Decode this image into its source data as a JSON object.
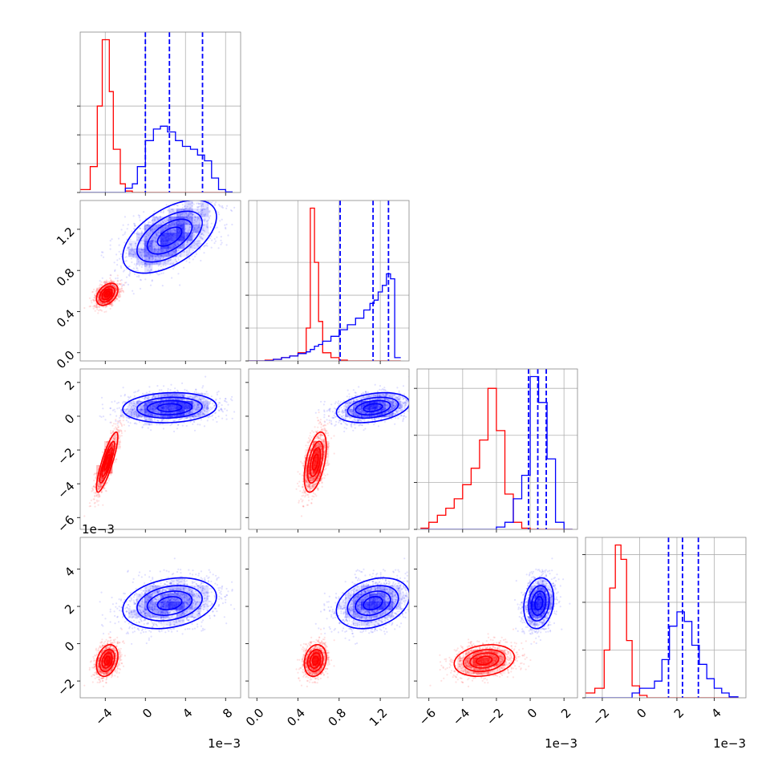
{
  "chart_data": {
    "type": "corner",
    "title": "",
    "params": [
      {
        "ticks": [
          -4,
          0,
          4,
          8
        ],
        "tick_labels": [
          "−4",
          "0",
          "4",
          "8"
        ],
        "range": [
          -6.5,
          9.5
        ],
        "scale_label": "1e−3"
      },
      {
        "ticks": [
          0.0,
          0.4,
          0.8,
          1.2
        ],
        "tick_labels": [
          "0.0",
          "0.4",
          "0.8",
          "1.2"
        ],
        "range": [
          -0.08,
          1.48
        ],
        "scale_label": ""
      },
      {
        "ticks": [
          -6,
          -4,
          -2,
          0,
          2
        ],
        "tick_labels": [
          "−6",
          "−4",
          "−2",
          "0",
          "2"
        ],
        "range": [
          -6.7,
          2.8
        ],
        "scale_label": "1e−3"
      },
      {
        "ticks": [
          -2,
          0,
          2,
          4
        ],
        "tick_labels": [
          "−2",
          "0",
          "2",
          "4"
        ],
        "range": [
          -2.9,
          5.7
        ],
        "scale_label": "1e−3"
      }
    ],
    "series": [
      {
        "color": "#ff0000",
        "means": [
          -3.8,
          0.57,
          -2.7,
          -0.9
        ],
        "sd": [
          0.55,
          0.055,
          0.9,
          0.45
        ],
        "corr": [
          [
            1,
            0.4,
            0.85,
            0.3
          ],
          [
            0.4,
            1,
            0.5,
            0.2
          ],
          [
            0.85,
            0.5,
            1,
            0.2
          ],
          [
            0.3,
            0.2,
            0.2,
            1
          ]
        ]
      },
      {
        "color": "#0000ff",
        "means": [
          2.5,
          1.13,
          0.5,
          2.2
        ],
        "sd": [
          2.4,
          0.18,
          0.45,
          0.7
        ],
        "corr": [
          [
            1,
            0.55,
            0.1,
            0.3
          ],
          [
            0.55,
            1,
            0.3,
            0.35
          ],
          [
            0.1,
            0.3,
            1,
            0.2
          ],
          [
            0.3,
            0.35,
            0.2,
            1
          ]
        ]
      }
    ],
    "diagonal": [
      {
        "bins": [
          -6.5,
          -5.5,
          -4.8,
          -4.3,
          -3.6,
          -3.2,
          -2.5,
          -2.0,
          -1.3,
          -0.8,
          0.0,
          0.8,
          1.5,
          2.2,
          3.0,
          3.7,
          4.5,
          5.2,
          5.9,
          6.6,
          7.3,
          8.0,
          8.7
        ],
        "red": [
          0.1,
          0.9,
          3.0,
          5.3,
          3.5,
          1.5,
          0.3,
          0.05,
          0,
          0,
          0,
          0,
          0,
          0,
          0,
          0,
          0,
          0,
          0,
          0,
          0,
          0
        ],
        "blue": [
          0,
          0,
          0,
          0,
          0,
          0,
          0,
          0.15,
          0.3,
          0.9,
          1.8,
          2.2,
          2.3,
          2.1,
          1.8,
          1.6,
          1.5,
          1.3,
          1.1,
          0.5,
          0.1,
          0.02
        ],
        "quantiles": [
          0.0,
          2.4,
          5.7
        ],
        "grid_y": [
          1,
          2,
          3
        ]
      },
      {
        "bins": [
          -0.08,
          0.0,
          0.08,
          0.16,
          0.24,
          0.32,
          0.4,
          0.48,
          0.52,
          0.56,
          0.6,
          0.64,
          0.72,
          0.8,
          0.88,
          0.96,
          1.04,
          1.1,
          1.14,
          1.18,
          1.22,
          1.26,
          1.3,
          1.34,
          1.4
        ],
        "red": [
          0,
          0,
          0.05,
          0.1,
          0.2,
          0.3,
          0.5,
          2.0,
          9.3,
          6.0,
          2.4,
          0.5,
          0.2,
          0.05,
          0,
          0,
          0,
          0,
          0,
          0,
          0,
          0,
          0,
          0
        ],
        "blue": [
          0,
          0,
          0.02,
          0.1,
          0.2,
          0.3,
          0.45,
          0.55,
          0.7,
          0.9,
          1.0,
          1.2,
          1.5,
          1.9,
          2.2,
          2.6,
          3.1,
          3.5,
          3.7,
          4.2,
          4.6,
          5.3,
          5.0,
          0.2
        ],
        "quantiles": [
          0.81,
          1.13,
          1.28
        ],
        "grid_y": [
          2,
          4,
          6
        ]
      },
      {
        "bins": [
          -6.5,
          -6.0,
          -5.5,
          -5.0,
          -4.5,
          -4.0,
          -3.5,
          -3.0,
          -2.5,
          -2.0,
          -1.5,
          -1.0,
          -0.5,
          0.0,
          0.5,
          1.0,
          1.5,
          2.0,
          2.5
        ],
        "red": [
          0.05,
          0.3,
          0.6,
          0.9,
          1.3,
          1.9,
          2.6,
          3.8,
          6.0,
          4.2,
          1.5,
          0.3,
          0.05,
          0,
          0,
          0,
          0,
          0
        ],
        "blue": [
          0,
          0,
          0,
          0,
          0,
          0,
          0,
          0,
          0,
          0.1,
          0.3,
          1.3,
          2.3,
          6.5,
          5.4,
          3.0,
          0.3,
          0
        ],
        "quantiles": [
          -0.1,
          0.45,
          0.95
        ],
        "grid_y": [
          2,
          4,
          6
        ]
      },
      {
        "bins": [
          -2.9,
          -2.4,
          -1.9,
          -1.6,
          -1.3,
          -1.0,
          -0.7,
          -0.4,
          0.0,
          0.4,
          0.8,
          1.2,
          1.6,
          2.0,
          2.4,
          2.8,
          3.2,
          3.6,
          4.0,
          4.4,
          4.8,
          5.3
        ],
        "red": [
          0.1,
          0.2,
          1.0,
          2.3,
          3.2,
          2.9,
          1.2,
          0.25,
          0.05,
          0,
          0,
          0,
          0,
          0,
          0,
          0,
          0,
          0,
          0,
          0,
          0
        ],
        "blue": [
          0,
          0,
          0,
          0,
          0,
          0,
          0,
          0.1,
          0.2,
          0.2,
          0.35,
          0.8,
          1.5,
          1.8,
          1.6,
          1.1,
          0.7,
          0.4,
          0.2,
          0.1,
          0.02
        ],
        "quantiles": [
          1.55,
          2.3,
          3.15
        ],
        "grid_y": [
          1,
          2,
          3
        ]
      }
    ],
    "kde_levels": [
      0.12,
      0.35,
      0.6,
      0.85
    ],
    "grid": true
  }
}
